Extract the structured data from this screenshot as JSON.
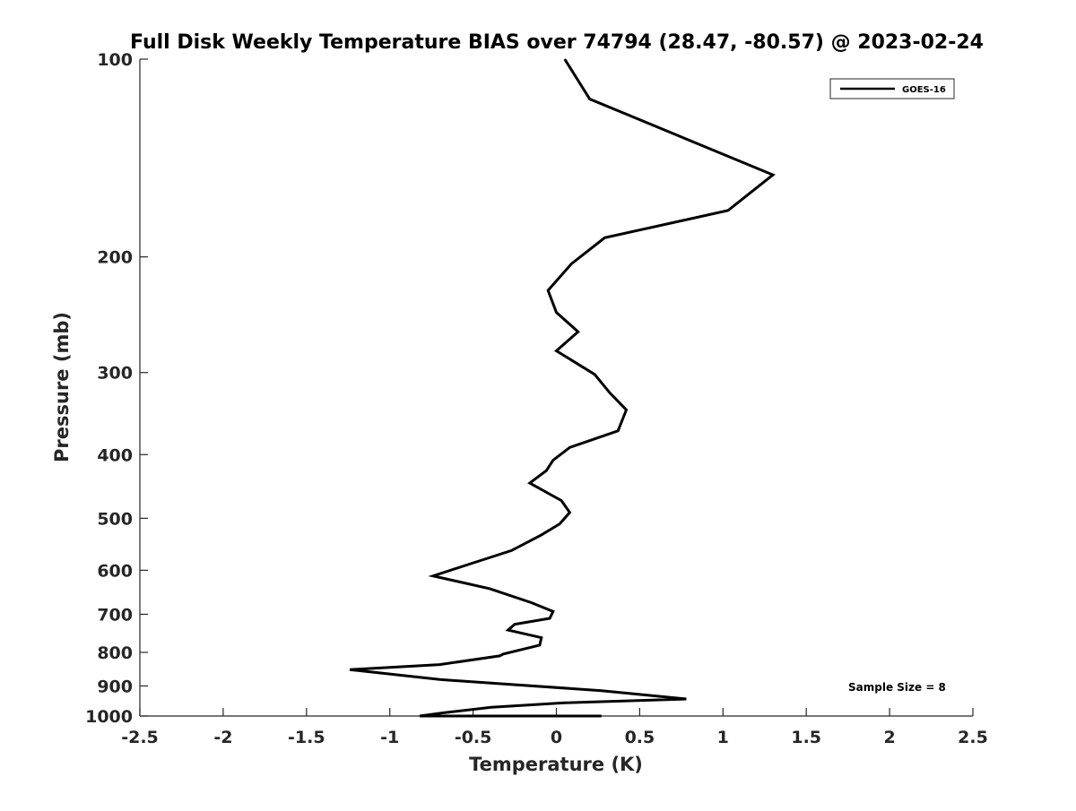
{
  "chart_data": {
    "type": "line",
    "title": "Full Disk Weekly Temperature BIAS over 74794 (28.47, -80.57) @ 2023-02-24",
    "xlabel": "Temperature (K)",
    "ylabel": "Pressure (mb)",
    "xlim": [
      -2.5,
      2.5
    ],
    "ylim": [
      100,
      1000
    ],
    "y_scale": "log",
    "y_reversed": true,
    "grid": false,
    "legend_position": "top-right",
    "x_ticks": [
      -2.5,
      -2,
      -1.5,
      -1,
      -0.5,
      0,
      0.5,
      1,
      1.5,
      2,
      2.5
    ],
    "x_tick_labels": [
      "-2.5",
      "-2",
      "-1.5",
      "-1",
      "-0.5",
      "0",
      "0.5",
      "1",
      "1.5",
      "2",
      "2.5"
    ],
    "y_ticks": [
      100,
      200,
      300,
      400,
      500,
      600,
      700,
      800,
      900,
      1000
    ],
    "y_tick_labels": [
      "100",
      "200",
      "300",
      "400",
      "500",
      "600",
      "700",
      "800",
      "900",
      "1000"
    ],
    "series": [
      {
        "name": "GOES-16",
        "color": "#000000",
        "x": [
          0.05,
          0.2,
          1.3,
          1.03,
          0.29,
          0.09,
          -0.05,
          0.0,
          0.13,
          0.0,
          0.23,
          0.32,
          0.42,
          0.37,
          0.08,
          -0.02,
          -0.06,
          -0.16,
          0.03,
          0.08,
          0.02,
          -0.09,
          -0.27,
          -0.53,
          -0.74,
          -0.4,
          -0.15,
          -0.02,
          -0.04,
          -0.25,
          -0.29,
          -0.09,
          -0.1,
          -0.32,
          -0.34,
          -0.7,
          -1.24,
          -0.7,
          0.27,
          0.78,
          0.05,
          -0.39,
          -0.67,
          -0.82,
          -0.75,
          0.27
        ],
        "y": [
          100,
          115,
          150,
          170,
          187,
          205,
          225,
          243,
          260,
          278,
          302,
          322,
          342,
          368,
          390,
          408,
          423,
          442,
          470,
          490,
          510,
          530,
          560,
          588,
          612,
          640,
          672,
          693,
          710,
          725,
          740,
          760,
          780,
          805,
          810,
          835,
          850,
          880,
          915,
          942,
          955,
          970,
          988,
          1002,
          1010,
          1030
        ]
      }
    ]
  },
  "annotations": {
    "sample_size": "Sample Size = 8"
  }
}
